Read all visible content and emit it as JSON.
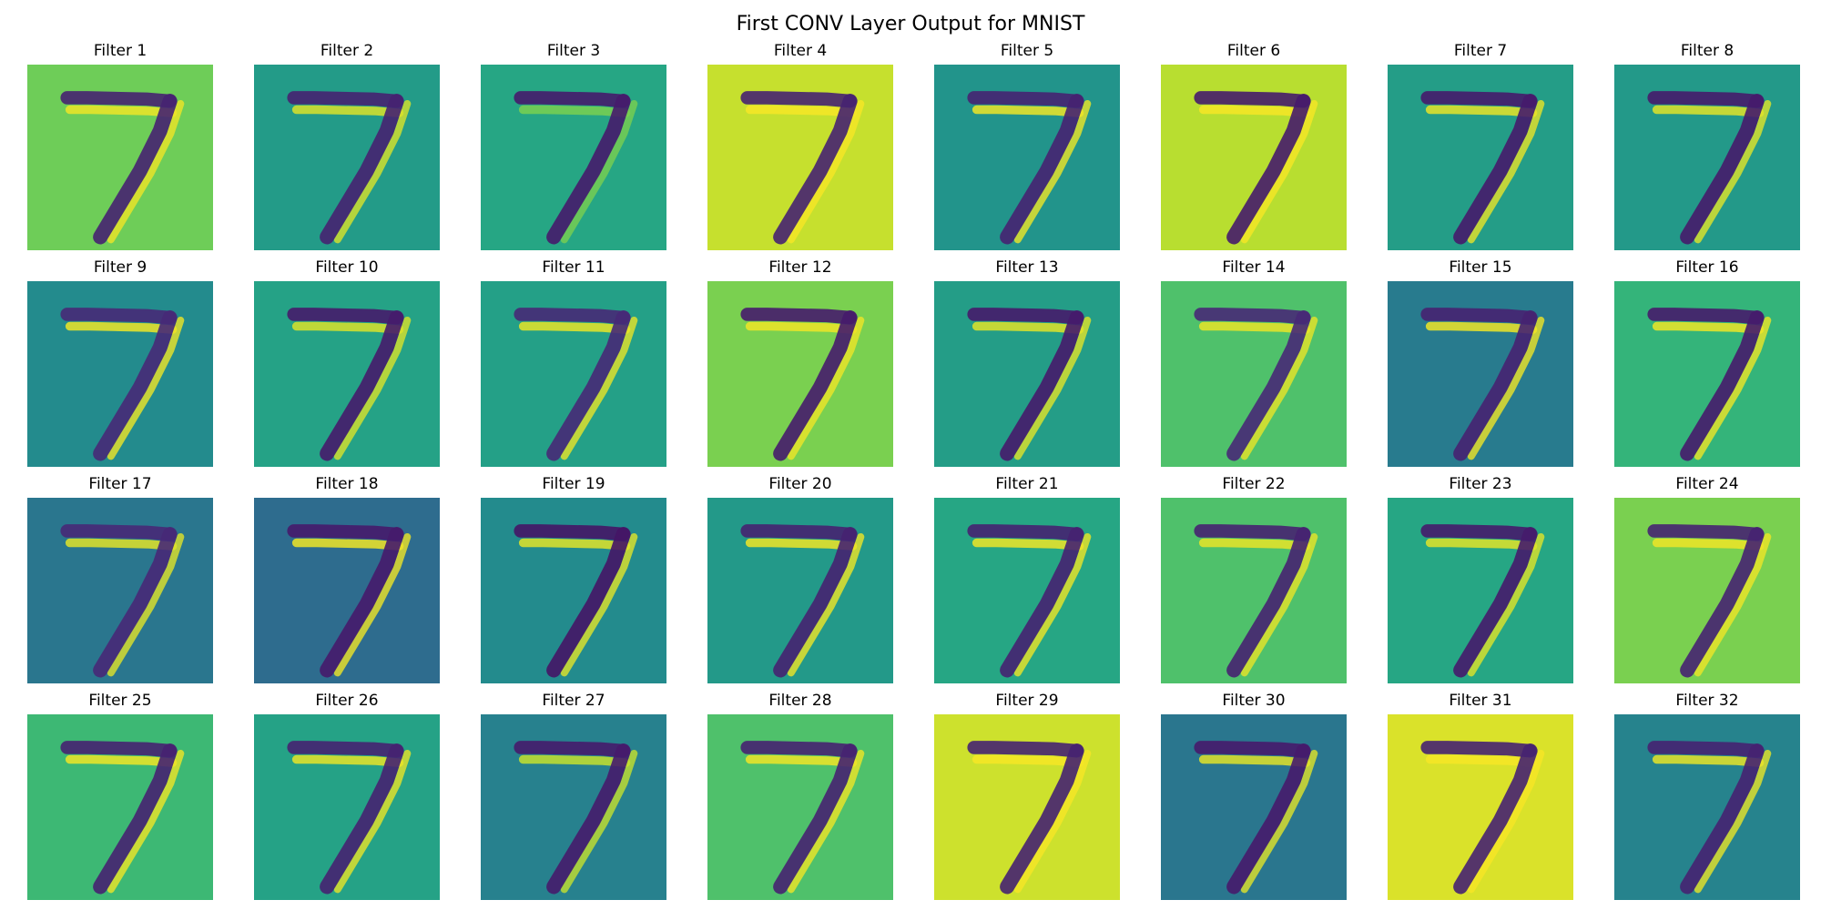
{
  "figure": {
    "title": "First CONV Layer Output for MNIST"
  },
  "chart_data": {
    "type": "heatmap",
    "title": "First CONV Layer Output for MNIST",
    "colormap": "viridis",
    "input_digit": "7",
    "grid": {
      "rows": 4,
      "cols": 8
    },
    "axes_visible": false,
    "panels": [
      {
        "title": "Filter 1",
        "background": 0.78,
        "stroke": 0.1,
        "highlight": 0.98
      },
      {
        "title": "Filter 2",
        "background": 0.55,
        "stroke": 0.1,
        "highlight": 0.95
      },
      {
        "title": "Filter 3",
        "background": 0.6,
        "stroke": 0.08,
        "highlight": 0.8
      },
      {
        "title": "Filter 4",
        "background": 0.92,
        "stroke": 0.1,
        "highlight": 0.99
      },
      {
        "title": "Filter 5",
        "background": 0.52,
        "stroke": 0.1,
        "highlight": 0.98
      },
      {
        "title": "Filter 6",
        "background": 0.9,
        "stroke": 0.08,
        "highlight": 0.99
      },
      {
        "title": "Filter 7",
        "background": 0.56,
        "stroke": 0.08,
        "highlight": 0.97
      },
      {
        "title": "Filter 8",
        "background": 0.54,
        "stroke": 0.08,
        "highlight": 0.96
      },
      {
        "title": "Filter 9",
        "background": 0.48,
        "stroke": 0.12,
        "highlight": 0.98
      },
      {
        "title": "Filter 10",
        "background": 0.58,
        "stroke": 0.08,
        "highlight": 0.95
      },
      {
        "title": "Filter 11",
        "background": 0.57,
        "stroke": 0.12,
        "highlight": 0.97
      },
      {
        "title": "Filter 12",
        "background": 0.8,
        "stroke": 0.08,
        "highlight": 0.98
      },
      {
        "title": "Filter 13",
        "background": 0.56,
        "stroke": 0.08,
        "highlight": 0.96
      },
      {
        "title": "Filter 14",
        "background": 0.72,
        "stroke": 0.12,
        "highlight": 0.97
      },
      {
        "title": "Filter 15",
        "background": 0.42,
        "stroke": 0.1,
        "highlight": 0.98
      },
      {
        "title": "Filter 16",
        "background": 0.66,
        "stroke": 0.08,
        "highlight": 0.98
      },
      {
        "title": "Filter 17",
        "background": 0.4,
        "stroke": 0.12,
        "highlight": 0.96
      },
      {
        "title": "Filter 18",
        "background": 0.36,
        "stroke": 0.08,
        "highlight": 0.98
      },
      {
        "title": "Filter 19",
        "background": 0.48,
        "stroke": 0.06,
        "highlight": 0.96
      },
      {
        "title": "Filter 20",
        "background": 0.54,
        "stroke": 0.1,
        "highlight": 0.98
      },
      {
        "title": "Filter 21",
        "background": 0.6,
        "stroke": 0.1,
        "highlight": 0.98
      },
      {
        "title": "Filter 22",
        "background": 0.72,
        "stroke": 0.1,
        "highlight": 0.97
      },
      {
        "title": "Filter 23",
        "background": 0.6,
        "stroke": 0.08,
        "highlight": 0.96
      },
      {
        "title": "Filter 24",
        "background": 0.8,
        "stroke": 0.1,
        "highlight": 0.98
      },
      {
        "title": "Filter 25",
        "background": 0.68,
        "stroke": 0.1,
        "highlight": 0.98
      },
      {
        "title": "Filter 26",
        "background": 0.58,
        "stroke": 0.1,
        "highlight": 0.97
      },
      {
        "title": "Filter 27",
        "background": 0.44,
        "stroke": 0.08,
        "highlight": 0.92
      },
      {
        "title": "Filter 28",
        "background": 0.72,
        "stroke": 0.1,
        "highlight": 0.98
      },
      {
        "title": "Filter 29",
        "background": 0.93,
        "stroke": 0.1,
        "highlight": 0.99
      },
      {
        "title": "Filter 30",
        "background": 0.4,
        "stroke": 0.08,
        "highlight": 0.96
      },
      {
        "title": "Filter 31",
        "background": 0.95,
        "stroke": 0.1,
        "highlight": 0.99
      },
      {
        "title": "Filter 32",
        "background": 0.45,
        "stroke": 0.1,
        "highlight": 0.97
      }
    ]
  }
}
